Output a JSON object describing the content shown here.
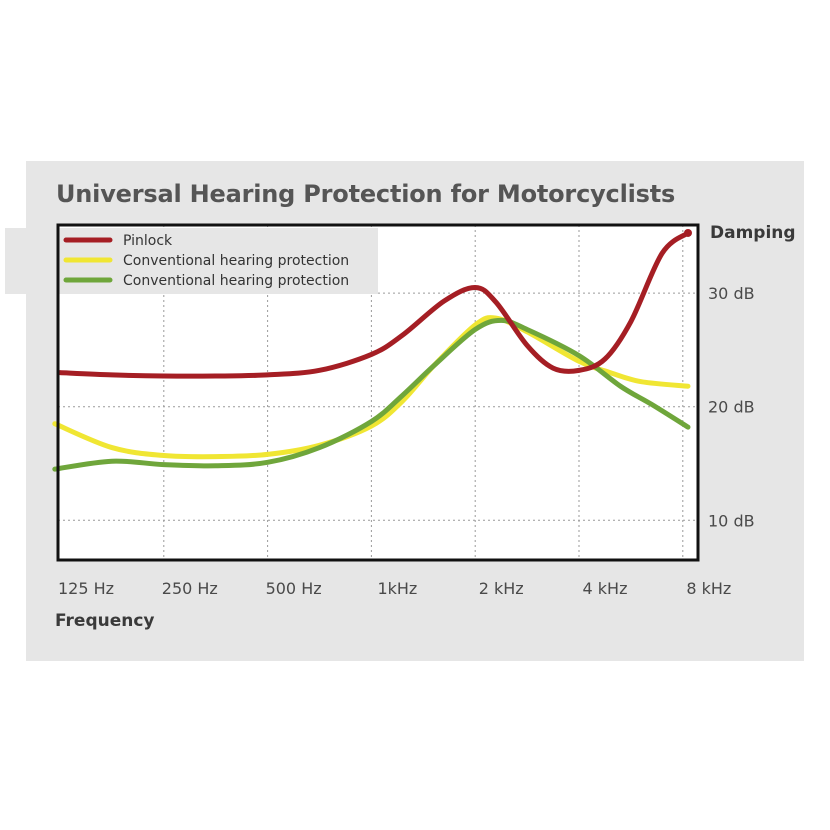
{
  "chart_data": {
    "type": "line",
    "title": "Universal Hearing Protection for Motorcyclists",
    "xlabel": "Frequency",
    "ylabel": "Damping",
    "x_scale": "log2",
    "categories": [
      "125 Hz",
      "250 Hz",
      "500 Hz",
      "1kHz",
      "2  kHz",
      "4  kHz",
      "8  kHz"
    ],
    "y_ticks": [
      "10 dB",
      "20 dB",
      "30 dB"
    ],
    "y_tick_values": [
      10,
      20,
      30
    ],
    "ylim": [
      6.5,
      36
    ],
    "grid": true,
    "legend_position": "top-left",
    "series": [
      {
        "name": "Pinlock",
        "color": "#a51e24",
        "points": [
          [
            0,
            23.0
          ],
          [
            0.5,
            22.8
          ],
          [
            1,
            22.7
          ],
          [
            1.5,
            22.7
          ],
          [
            2,
            22.8
          ],
          [
            2.5,
            23.2
          ],
          [
            3,
            24.6
          ],
          [
            3.3,
            26.3
          ],
          [
            3.7,
            29.3
          ],
          [
            4,
            30.5
          ],
          [
            4.2,
            29.2
          ],
          [
            4.5,
            25.4
          ],
          [
            4.75,
            23.4
          ],
          [
            5,
            23.2
          ],
          [
            5.25,
            24.2
          ],
          [
            5.5,
            27.5
          ],
          [
            5.8,
            33.5
          ],
          [
            6.05,
            35.3
          ]
        ]
      },
      {
        "name": "Conventional hearing protection",
        "color": "#f0e633",
        "points": [
          [
            -0.05,
            18.5
          ],
          [
            0.5,
            16.4
          ],
          [
            1,
            15.7
          ],
          [
            1.5,
            15.6
          ],
          [
            2,
            15.8
          ],
          [
            2.5,
            16.6
          ],
          [
            3,
            18.3
          ],
          [
            3.3,
            20.5
          ],
          [
            3.6,
            23.6
          ],
          [
            4,
            27.2
          ],
          [
            4.2,
            27.8
          ],
          [
            4.5,
            26.6
          ],
          [
            5,
            24.0
          ],
          [
            5.3,
            23.0
          ],
          [
            5.6,
            22.2
          ],
          [
            6.05,
            21.8
          ]
        ]
      },
      {
        "name": "Conventional hearing protection",
        "color": "#6fa63b",
        "points": [
          [
            -0.05,
            14.5
          ],
          [
            0.5,
            15.2
          ],
          [
            1,
            14.9
          ],
          [
            1.5,
            14.8
          ],
          [
            2,
            15.1
          ],
          [
            2.5,
            16.4
          ],
          [
            3,
            18.7
          ],
          [
            3.3,
            21.0
          ],
          [
            3.6,
            23.6
          ],
          [
            4,
            26.8
          ],
          [
            4.25,
            27.6
          ],
          [
            4.5,
            26.8
          ],
          [
            5,
            24.5
          ],
          [
            5.4,
            21.8
          ],
          [
            5.7,
            20.2
          ],
          [
            6.05,
            18.2
          ]
        ]
      }
    ]
  }
}
